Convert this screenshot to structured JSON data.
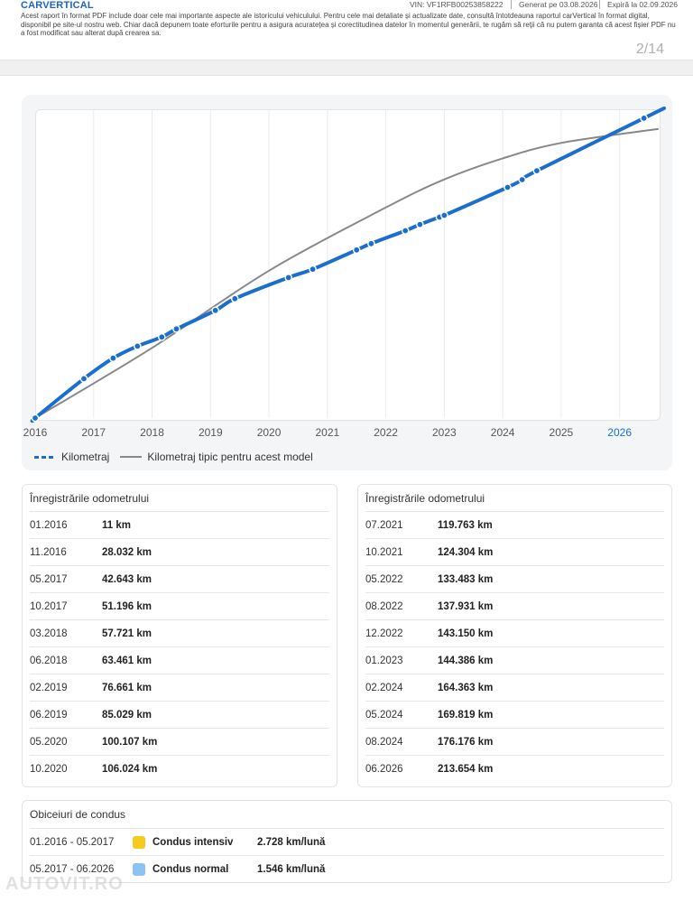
{
  "header": {
    "logo": "CARVERTICAL",
    "vin": "VIN:  VF1RFB00253858222",
    "generated": "Generat pe  03.08.2026",
    "expires": "Expiră la  02.09.2026",
    "disclaimer": "Acest raport în format PDF include doar cele mai importante aspecte ale istoricului vehiculului. Pentru cele mai detaliate și actualizate date, consultă întotdeauna raportul carVertical în format digital, disponibil pe site-ul nostru web. Chiar dacă depunem toate eforturile pentru a asigura acuratețea și corectitudinea datelor în momentul generării, te rugăm să reții că nu putem garanta că acest fișier PDF nu a fost modificat sau alterat după crearea sa.",
    "page": "2/14"
  },
  "chart_data": {
    "type": "line",
    "title": "",
    "xlabel": "",
    "ylabel": "",
    "x_ticks": [
      "2016",
      "2017",
      "2018",
      "2019",
      "2020",
      "2021",
      "2022",
      "2023",
      "2024",
      "2025",
      "2026"
    ],
    "highlight_tick": "2026",
    "xlim": [
      2016.0,
      2026.7
    ],
    "ylim": [
      0,
      220000
    ],
    "grid": true,
    "legend_position": "bottom-left",
    "series": [
      {
        "name": "Kilometraj",
        "color": "#1a6ed0",
        "style": "thick-dotted-markers",
        "points": [
          {
            "date": "01.2016",
            "km": 11
          },
          {
            "date": "11.2016",
            "km": 28032
          },
          {
            "date": "05.2017",
            "km": 42643
          },
          {
            "date": "10.2017",
            "km": 51196
          },
          {
            "date": "03.2018",
            "km": 57721
          },
          {
            "date": "06.2018",
            "km": 63461
          },
          {
            "date": "02.2019",
            "km": 76661
          },
          {
            "date": "06.2019",
            "km": 85029
          },
          {
            "date": "05.2020",
            "km": 100107
          },
          {
            "date": "10.2020",
            "km": 106024
          },
          {
            "date": "07.2021",
            "km": 119763
          },
          {
            "date": "10.2021",
            "km": 124304
          },
          {
            "date": "05.2022",
            "km": 133483
          },
          {
            "date": "08.2022",
            "km": 137931
          },
          {
            "date": "12.2022",
            "km": 143150
          },
          {
            "date": "01.2023",
            "km": 144386
          },
          {
            "date": "02.2024",
            "km": 164363
          },
          {
            "date": "05.2024",
            "km": 169819
          },
          {
            "date": "08.2024",
            "km": 176176
          },
          {
            "date": "06.2026",
            "km": 213654
          }
        ]
      },
      {
        "name": "Kilometraj tipic pentru acest model",
        "color": "#888888",
        "style": "line",
        "points": [
          {
            "date": "01.2016",
            "km": 0
          },
          {
            "date": "01.2018",
            "km": 50000
          },
          {
            "date": "01.2020",
            "km": 105000
          },
          {
            "date": "01.2022",
            "km": 150000
          },
          {
            "date": "01.2023",
            "km": 170000
          },
          {
            "date": "01.2024",
            "km": 185000
          },
          {
            "date": "01.2025",
            "km": 196000
          },
          {
            "date": "09.2026",
            "km": 206000
          }
        ]
      }
    ]
  },
  "legend": {
    "blue_label": "Kilometraj",
    "gray_label": "Kilometraj tipic pentru acest model"
  },
  "odometer_left": {
    "title": "Înregistrările odometrului",
    "rows": [
      {
        "date": "01.2016",
        "value": "11 km"
      },
      {
        "date": "11.2016",
        "value": "28.032 km"
      },
      {
        "date": "05.2017",
        "value": "42.643 km"
      },
      {
        "date": "10.2017",
        "value": "51.196 km"
      },
      {
        "date": "03.2018",
        "value": "57.721 km"
      },
      {
        "date": "06.2018",
        "value": "63.461 km"
      },
      {
        "date": "02.2019",
        "value": "76.661 km"
      },
      {
        "date": "06.2019",
        "value": "85.029 km"
      },
      {
        "date": "05.2020",
        "value": "100.107 km"
      },
      {
        "date": "10.2020",
        "value": "106.024 km"
      }
    ]
  },
  "odometer_right": {
    "title": "Înregistrările odometrului",
    "rows": [
      {
        "date": "07.2021",
        "value": "119.763 km"
      },
      {
        "date": "10.2021",
        "value": "124.304 km"
      },
      {
        "date": "05.2022",
        "value": "133.483 km"
      },
      {
        "date": "08.2022",
        "value": "137.931 km"
      },
      {
        "date": "12.2022",
        "value": "143.150 km"
      },
      {
        "date": "01.2023",
        "value": "144.386 km"
      },
      {
        "date": "02.2024",
        "value": "164.363 km"
      },
      {
        "date": "05.2024",
        "value": "169.819 km"
      },
      {
        "date": "08.2024",
        "value": "176.176 km"
      },
      {
        "date": "06.2026",
        "value": "213.654 km"
      }
    ]
  },
  "driving_habits": {
    "title": "Obiceiuri de condus",
    "rows": [
      {
        "period": "01.2016 - 05.2017",
        "label": "Condus intensiv",
        "rate": "2.728 km/lună",
        "color": "#f5cc1d"
      },
      {
        "period": "05.2017 - 06.2026",
        "label": "Condus normal",
        "rate": "1.546 km/lună",
        "color": "#8cc3f3"
      }
    ]
  },
  "watermark": "AUTOVIT.RO"
}
